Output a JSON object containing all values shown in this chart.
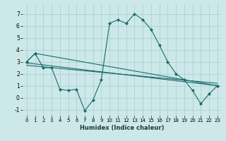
{
  "xlabel": "Humidex (Indice chaleur)",
  "background_color": "#cce8e8",
  "grid_color": "#aacccc",
  "line_color": "#1a6b6b",
  "xlim": [
    -0.5,
    23.5
  ],
  "ylim": [
    -1.5,
    7.8
  ],
  "xticks": [
    0,
    1,
    2,
    3,
    4,
    5,
    6,
    7,
    8,
    9,
    10,
    11,
    12,
    13,
    14,
    15,
    16,
    17,
    18,
    19,
    20,
    21,
    22,
    23
  ],
  "yticks": [
    -1,
    0,
    1,
    2,
    3,
    4,
    5,
    6,
    7
  ],
  "series": [
    {
      "x": [
        0,
        1,
        2,
        3,
        4,
        5,
        6,
        7,
        8,
        9,
        10,
        11,
        12,
        13,
        14,
        15,
        16,
        17,
        18,
        19,
        20,
        21,
        22,
        23
      ],
      "y": [
        3.0,
        3.7,
        2.5,
        2.5,
        0.7,
        0.6,
        0.7,
        -1.1,
        -0.2,
        1.5,
        6.2,
        6.5,
        6.2,
        7.0,
        6.5,
        5.7,
        4.4,
        3.0,
        2.0,
        1.5,
        0.6,
        -0.5,
        0.3,
        1.0
      ],
      "marker": "D",
      "markersize": 2.0,
      "linewidth": 0.8,
      "has_marker": true
    },
    {
      "x": [
        0,
        23
      ],
      "y": [
        2.9,
        1.0
      ],
      "marker": null,
      "markersize": 0,
      "linewidth": 0.8,
      "has_marker": false
    },
    {
      "x": [
        0,
        23
      ],
      "y": [
        2.7,
        1.2
      ],
      "marker": null,
      "markersize": 0,
      "linewidth": 0.8,
      "has_marker": false
    },
    {
      "x": [
        0,
        1,
        23
      ],
      "y": [
        3.0,
        3.7,
        1.0
      ],
      "marker": "D",
      "markersize": 2.0,
      "linewidth": 0.8,
      "has_marker": true
    }
  ],
  "xlabel_fontsize": 6.0,
  "xtick_fontsize": 5.0,
  "ytick_fontsize": 5.5
}
